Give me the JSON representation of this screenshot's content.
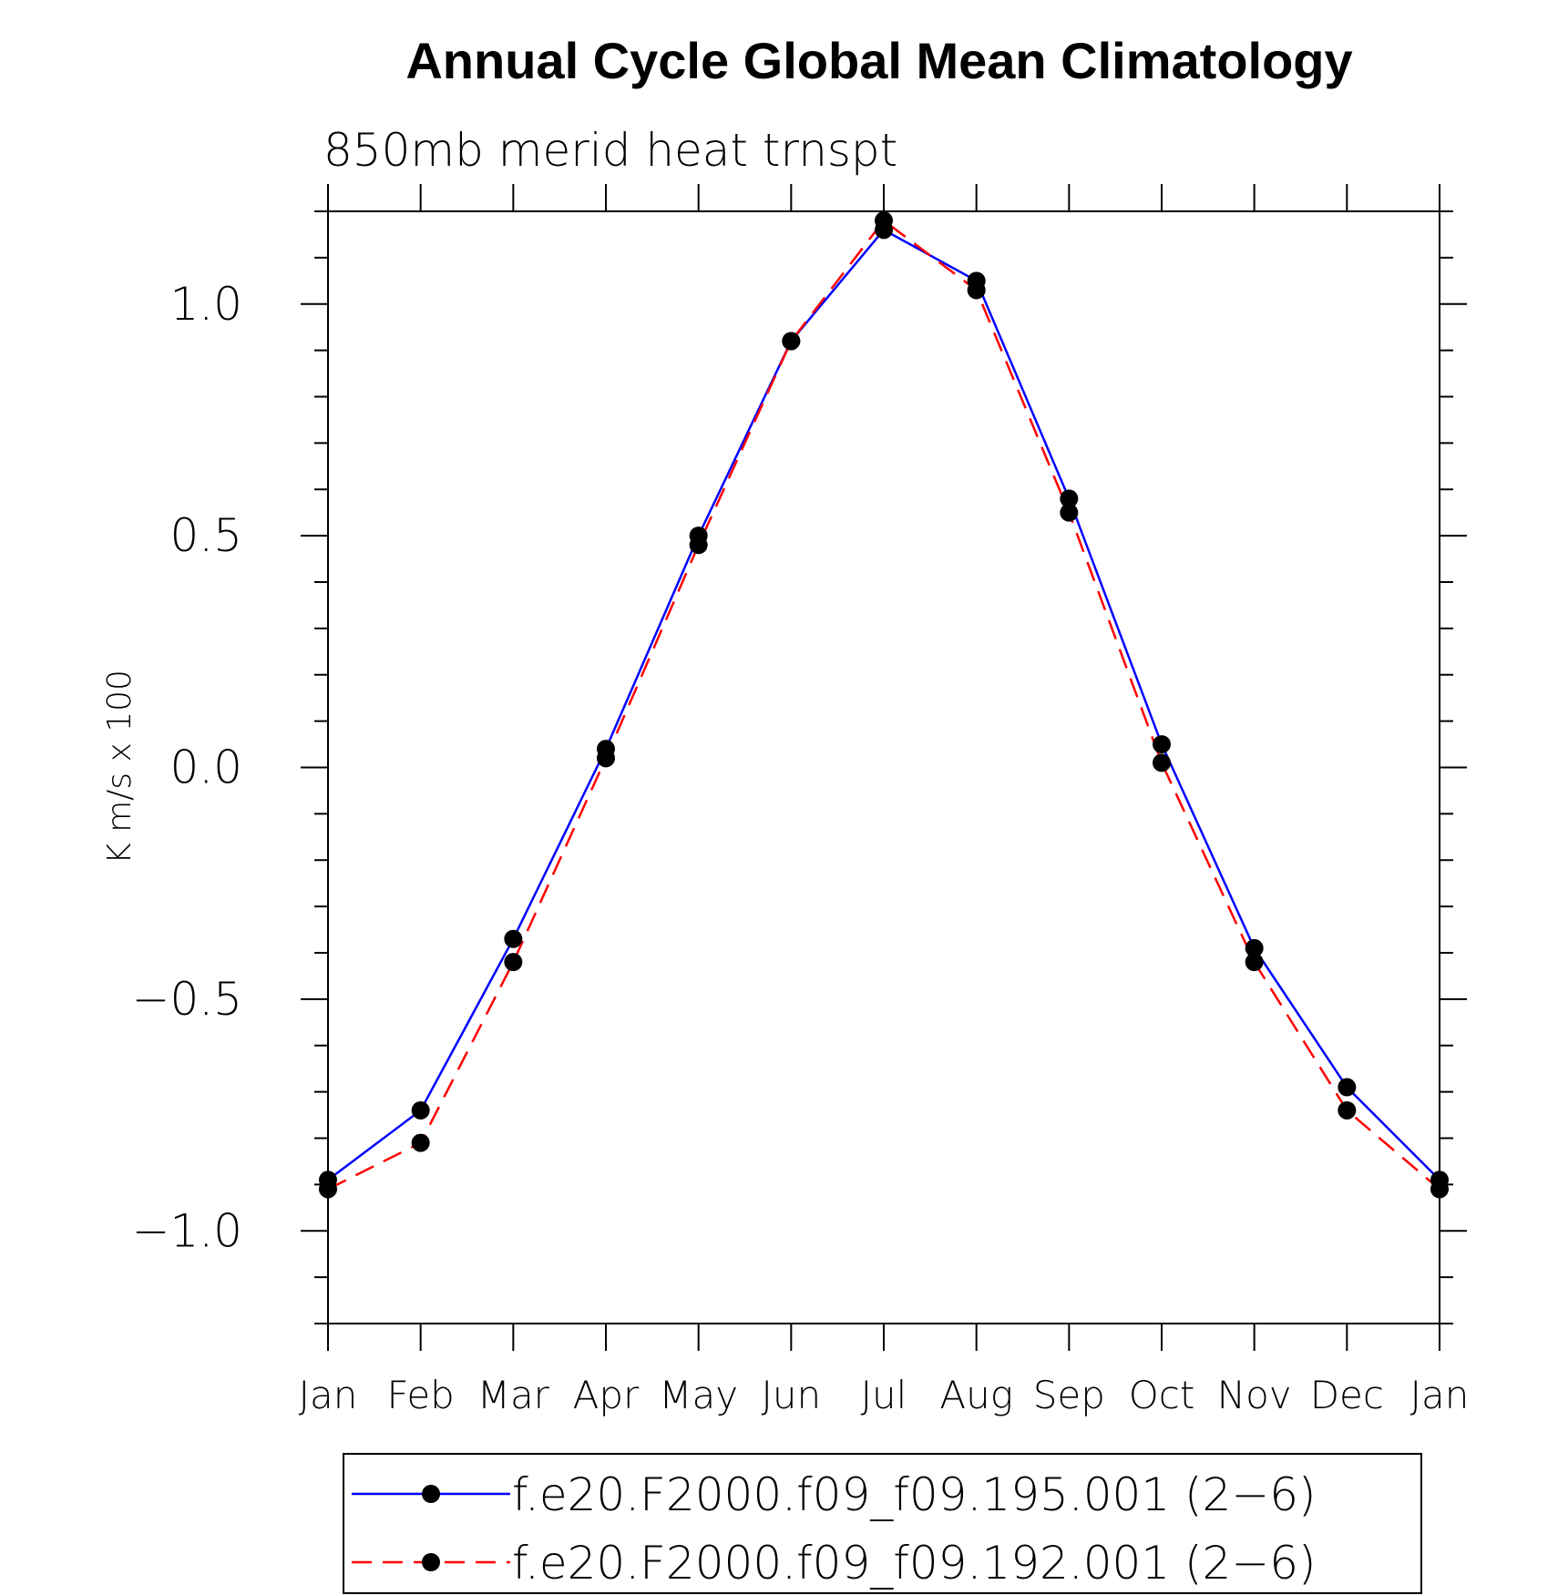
{
  "chart_data": {
    "type": "line",
    "title": "Annual Cycle Global Mean Climatology",
    "subtitle": "850mb merid heat trnspt",
    "ylabel": "K m/s x 100",
    "xlabel": "",
    "categories": [
      "Jan",
      "Feb",
      "Mar",
      "Apr",
      "May",
      "Jun",
      "Jul",
      "Aug",
      "Sep",
      "Oct",
      "Nov",
      "Dec",
      "Jan"
    ],
    "ylim": [
      -1.2,
      1.2
    ],
    "yticks": [
      -1.0,
      -0.5,
      0.0,
      0.5,
      1.0
    ],
    "ytick_labels": [
      "−1.0",
      "−0.5",
      "0.0",
      "0.5",
      "1.0"
    ],
    "legend_position": "bottom",
    "series": [
      {
        "name": "f.e20.F2000.f09_f09.195.001 (2−6)",
        "color": "#0000ff",
        "style": "solid",
        "values": [
          -0.89,
          -0.74,
          -0.37,
          0.04,
          0.5,
          0.92,
          1.16,
          1.05,
          0.58,
          0.05,
          -0.39,
          -0.69,
          -0.89
        ]
      },
      {
        "name": "f.e20.F2000.f09_f09.192.001 (2−6)",
        "color": "#ff0000",
        "style": "dashed",
        "values": [
          -0.91,
          -0.81,
          -0.42,
          0.02,
          0.48,
          0.92,
          1.18,
          1.03,
          0.55,
          0.01,
          -0.42,
          -0.74,
          -0.91
        ]
      }
    ]
  }
}
